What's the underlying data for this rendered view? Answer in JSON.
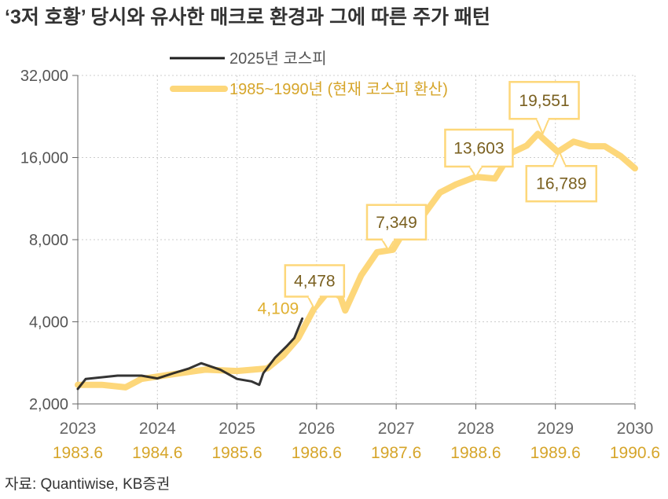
{
  "chart_data": {
    "type": "line",
    "title": "‘3저 호황’ 당시와 유사한 매크로 환경과 그에 따른 주가 패턴",
    "source": "자료: Quantiwise, KB증권",
    "y_scale": "log",
    "ylim": [
      2000,
      32000
    ],
    "yticks": [
      "2,000",
      "4,000",
      "8,000",
      "16,000",
      "32,000"
    ],
    "ytick_values": [
      2000,
      4000,
      8000,
      16000,
      32000
    ],
    "xlim": [
      2023,
      2030
    ],
    "xticks": [
      "2023",
      "2024",
      "2025",
      "2026",
      "2027",
      "2028",
      "2029",
      "2030"
    ],
    "xticks_secondary": [
      "1983.6",
      "1984.6",
      "1985.6",
      "1986.6",
      "1987.6",
      "1988.6",
      "1989.6",
      "1990.6"
    ],
    "grid": true,
    "legend_position": "top-left",
    "colors": {
      "kospi_2025": "#1E1E1E",
      "kospi_1985": "#FDD77A",
      "secondary_axis": "#D6A52A",
      "annotation_text": "#7A6020"
    },
    "series": [
      {
        "name": "2025년 코스피",
        "x": [
          2023.0,
          2023.1,
          2023.5,
          2023.8,
          2024.0,
          2024.2,
          2024.4,
          2024.55,
          2024.79,
          2025.0,
          2025.18,
          2025.28,
          2025.33,
          2025.48,
          2025.63,
          2025.72,
          2025.82
        ],
        "y": [
          2270,
          2470,
          2540,
          2540,
          2480,
          2590,
          2700,
          2820,
          2670,
          2470,
          2420,
          2350,
          2590,
          2960,
          3270,
          3490,
          4109
        ]
      },
      {
        "name": "1985~1990년 (현재 코스피 환산)",
        "x": [
          2023.0,
          2023.3,
          2023.6,
          2023.8,
          2024.2,
          2024.6,
          2025.0,
          2025.38,
          2025.58,
          2025.77,
          2025.97,
          2026.17,
          2026.3,
          2026.36,
          2026.56,
          2026.76,
          2026.96,
          2027.16,
          2027.36,
          2027.55,
          2027.75,
          2028.0,
          2028.24,
          2028.44,
          2028.64,
          2028.78,
          2029.03,
          2029.23,
          2029.43,
          2029.62,
          2029.82,
          2030.0
        ],
        "y": [
          2350,
          2350,
          2300,
          2470,
          2570,
          2670,
          2640,
          2700,
          3010,
          3490,
          4478,
          5270,
          4930,
          4400,
          5920,
          7200,
          7349,
          9200,
          10000,
          11900,
          12750,
          13603,
          13400,
          16600,
          17700,
          19551,
          16789,
          18300,
          17600,
          17600,
          16200,
          14600
        ]
      }
    ],
    "annotations": [
      {
        "label": "4,109",
        "x": 2025.82,
        "y": 4109,
        "series": "2025년 코스피",
        "boxed": false
      },
      {
        "label": "4,478",
        "x": 2025.97,
        "y": 4478,
        "boxed": true
      },
      {
        "label": "7,349",
        "x": 2026.9,
        "y": 7349,
        "boxed": true
      },
      {
        "label": "13,603",
        "x": 2028.0,
        "y": 13603,
        "boxed": true
      },
      {
        "label": "19,551",
        "x": 2028.84,
        "y": 19551,
        "boxed": true
      },
      {
        "label": "16,789",
        "x": 2029.05,
        "y": 16789,
        "boxed": true
      }
    ]
  }
}
